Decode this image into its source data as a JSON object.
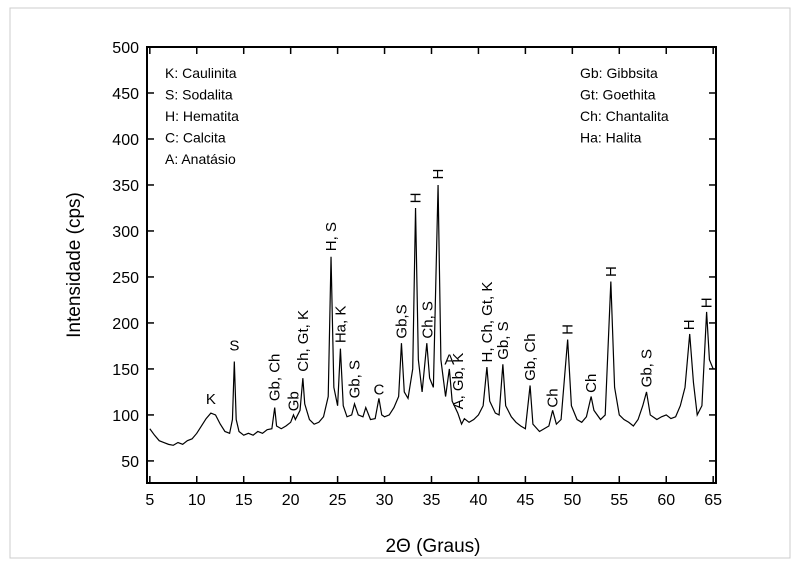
{
  "chart_data": {
    "type": "line",
    "x_label": "2Θ (Graus)",
    "y_label": "Intensidade (cps)",
    "xlim": [
      4.7,
      65.3
    ],
    "ylim": [
      26,
      500
    ],
    "xticks": [
      5,
      10,
      15,
      20,
      25,
      30,
      35,
      40,
      45,
      50,
      55,
      60,
      65
    ],
    "yticks": [
      50,
      100,
      150,
      200,
      250,
      300,
      350,
      400,
      450,
      500
    ],
    "legend_left": [
      "K: Caulinita",
      "S: Sodalita",
      "H: Hematita",
      "C: Calcita",
      "A: Anatásio"
    ],
    "legend_right": [
      "Gb: Gibbsita",
      "Gt: Goethita",
      "Ch: Chantalita",
      "Ha: Halita"
    ],
    "x": [
      5,
      5.5,
      6,
      6.5,
      7,
      7.5,
      8,
      8.5,
      9,
      9.5,
      10,
      10.5,
      11,
      11.5,
      12,
      12.5,
      13,
      13.5,
      13.8,
      14,
      14.2,
      14.5,
      15,
      15.5,
      16,
      16.5,
      17,
      17.5,
      18,
      18.3,
      18.5,
      19,
      19.5,
      20,
      20.3,
      20.5,
      21,
      21.3,
      21.5,
      22,
      22.5,
      23,
      23.5,
      24,
      24.3,
      24.6,
      25,
      25.3,
      25.6,
      26,
      26.5,
      26.8,
      27.2,
      27.7,
      28,
      28.5,
      29,
      29.4,
      29.7,
      30,
      30.5,
      31,
      31.5,
      31.8,
      32.1,
      32.5,
      33,
      33.3,
      33.6,
      34,
      34.5,
      34.8,
      35.2,
      35.7,
      36,
      36.5,
      36.9,
      37.2,
      37.8,
      38.2,
      38.5,
      39,
      39.5,
      40,
      40.5,
      40.9,
      41.2,
      41.8,
      42.2,
      42.6,
      42.9,
      43.5,
      44,
      44.5,
      45,
      45.5,
      45.8,
      46.5,
      47,
      47.5,
      47.9,
      48.3,
      48.8,
      49.5,
      49.9,
      50.5,
      51,
      51.5,
      52,
      52.3,
      53,
      53.5,
      54.1,
      54.5,
      55,
      55.5,
      56,
      56.5,
      57,
      57.5,
      57.9,
      58.3,
      59,
      59.5,
      60,
      60.5,
      61,
      61.5,
      62,
      62.5,
      62.9,
      63.3,
      63.8,
      64.3,
      64.6,
      65
    ],
    "series": [
      {
        "color": "#000000",
        "values": [
          85,
          78,
          72,
          70,
          68,
          67,
          70,
          68,
          72,
          74,
          80,
          88,
          96,
          102,
          100,
          90,
          82,
          80,
          95,
          158,
          95,
          82,
          78,
          80,
          78,
          82,
          80,
          84,
          85,
          108,
          88,
          85,
          88,
          92,
          100,
          95,
          105,
          140,
          112,
          95,
          90,
          92,
          98,
          120,
          272,
          130,
          110,
          172,
          110,
          98,
          100,
          112,
          100,
          98,
          108,
          95,
          96,
          118,
          100,
          98,
          100,
          108,
          120,
          178,
          125,
          118,
          150,
          325,
          160,
          125,
          178,
          140,
          130,
          350,
          160,
          120,
          150,
          115,
          102,
          90,
          96,
          92,
          95,
          100,
          110,
          152,
          115,
          102,
          100,
          155,
          110,
          98,
          92,
          88,
          85,
          132,
          90,
          82,
          85,
          88,
          105,
          90,
          95,
          182,
          110,
          95,
          92,
          98,
          120,
          105,
          95,
          100,
          245,
          130,
          100,
          95,
          92,
          88,
          95,
          110,
          125,
          100,
          95,
          98,
          100,
          96,
          98,
          110,
          130,
          188,
          135,
          100,
          110,
          212,
          160,
          150
        ]
      }
    ],
    "annotations": [
      {
        "text": "K",
        "x": 11.5,
        "y": 112,
        "vertical": false
      },
      {
        "text": "S",
        "x": 14,
        "y": 170,
        "vertical": false
      },
      {
        "text": "Gb, Ch",
        "x": 18.3,
        "y": 115,
        "vertical": true
      },
      {
        "text": "Gb",
        "x": 20.3,
        "y": 104,
        "vertical": true
      },
      {
        "text": "Ch, Gt, K",
        "x": 21.3,
        "y": 147,
        "vertical": true
      },
      {
        "text": "H, S",
        "x": 24.3,
        "y": 278,
        "vertical": true
      },
      {
        "text": "Ha, K",
        "x": 25.3,
        "y": 178,
        "vertical": true
      },
      {
        "text": "Gb, S",
        "x": 26.8,
        "y": 118,
        "vertical": true
      },
      {
        "text": "C",
        "x": 29.4,
        "y": 122,
        "vertical": false
      },
      {
        "text": "Gb,S",
        "x": 31.8,
        "y": 183,
        "vertical": true
      },
      {
        "text": "H",
        "x": 33.3,
        "y": 330,
        "vertical": true
      },
      {
        "text": "Ch, S",
        "x": 34.6,
        "y": 183,
        "vertical": true
      },
      {
        "text": "H",
        "x": 35.7,
        "y": 356,
        "vertical": true
      },
      {
        "text": "A",
        "x": 36.9,
        "y": 155,
        "vertical": false
      },
      {
        "text": "A, Gb, K",
        "x": 37.8,
        "y": 106,
        "vertical": true
      },
      {
        "text": "H, Ch, Gt, K",
        "x": 40.9,
        "y": 157,
        "vertical": true
      },
      {
        "text": "Gb, S",
        "x": 42.6,
        "y": 160,
        "vertical": true
      },
      {
        "text": "Gb, Ch",
        "x": 45.5,
        "y": 137,
        "vertical": true
      },
      {
        "text": "Ch",
        "x": 47.9,
        "y": 108,
        "vertical": true
      },
      {
        "text": "H",
        "x": 49.5,
        "y": 187,
        "vertical": true
      },
      {
        "text": "Ch",
        "x": 52,
        "y": 124,
        "vertical": true
      },
      {
        "text": "H",
        "x": 54.1,
        "y": 250,
        "vertical": true
      },
      {
        "text": "Gb, S",
        "x": 57.9,
        "y": 130,
        "vertical": true
      },
      {
        "text": "H",
        "x": 62.4,
        "y": 192,
        "vertical": true
      },
      {
        "text": "H",
        "x": 64.3,
        "y": 216,
        "vertical": true
      }
    ]
  }
}
